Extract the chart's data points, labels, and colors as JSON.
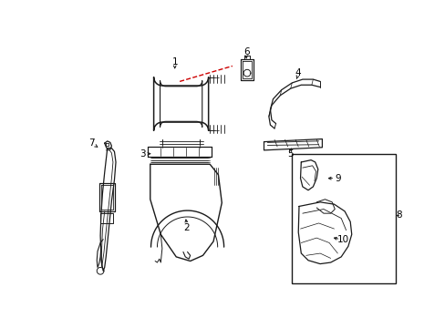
{
  "background_color": "#ffffff",
  "line_color": "#1a1a1a",
  "red_dash_color": "#cc0000",
  "label_color": "#000000",
  "label_fontsize": 7.5,
  "figsize": [
    4.89,
    3.6
  ],
  "dpi": 100
}
